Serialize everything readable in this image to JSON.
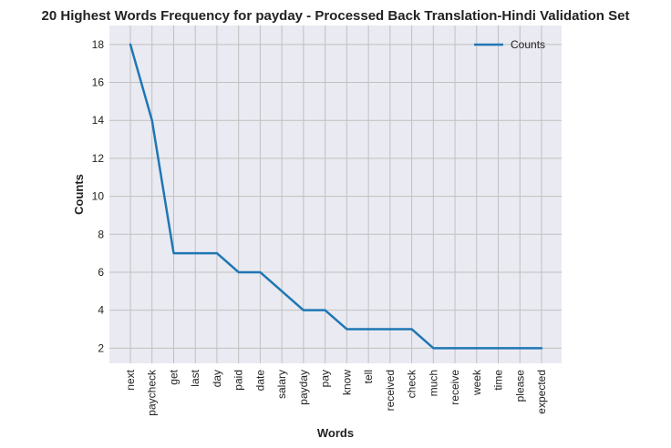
{
  "chart_data": {
    "type": "line",
    "title": "20 Highest Words Frequency for payday - Processed Back Translation-Hindi Validation Set",
    "xlabel": "Words",
    "ylabel": "Counts",
    "categories": [
      "next",
      "paycheck",
      "get",
      "last",
      "day",
      "paid",
      "date",
      "salary",
      "payday",
      "pay",
      "know",
      "tell",
      "received",
      "check",
      "much",
      "receive",
      "week",
      "time",
      "please",
      "expected"
    ],
    "series": [
      {
        "name": "Counts",
        "color": "#1f77b4",
        "values": [
          18,
          14,
          7,
          7,
          7,
          6,
          6,
          5,
          4,
          4,
          3,
          3,
          3,
          3,
          2,
          2,
          2,
          2,
          2,
          2
        ]
      }
    ],
    "ylim": [
      1.2,
      19.0
    ],
    "yticks": [
      2,
      4,
      6,
      8,
      10,
      12,
      14,
      16,
      18
    ],
    "grid": true,
    "legend_position": "top-right",
    "background": "#eaeaf2",
    "grid_color": "#c0c0c0"
  }
}
